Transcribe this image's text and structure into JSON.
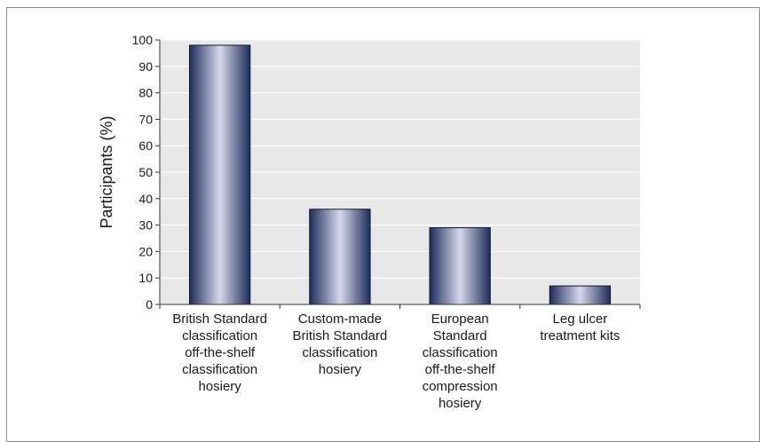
{
  "chart_data": {
    "type": "bar",
    "title": "",
    "xlabel": "",
    "ylabel": "Participants (%)",
    "ylim": [
      0,
      100
    ],
    "yticks": [
      0,
      10,
      20,
      30,
      40,
      50,
      60,
      70,
      80,
      90,
      100
    ],
    "grid": true,
    "categories": [
      [
        "British Standard",
        "classification",
        "off-the-shelf",
        "classification",
        "hosiery"
      ],
      [
        "Custom-made",
        "British Standard",
        "classification",
        "hosiery"
      ],
      [
        "European",
        "Standard",
        "classification",
        "off-the-shelf",
        "compression",
        "hosiery"
      ],
      [
        "Leg ulcer",
        "treatment kits"
      ]
    ],
    "values": [
      98,
      36,
      29,
      7
    ],
    "colors": {
      "plot_background": "#e8e8e8",
      "gridline": "#ffffff",
      "bar_dark": "#1f2d5c",
      "bar_light": "#d6d8ea",
      "axis": "#333333"
    }
  }
}
